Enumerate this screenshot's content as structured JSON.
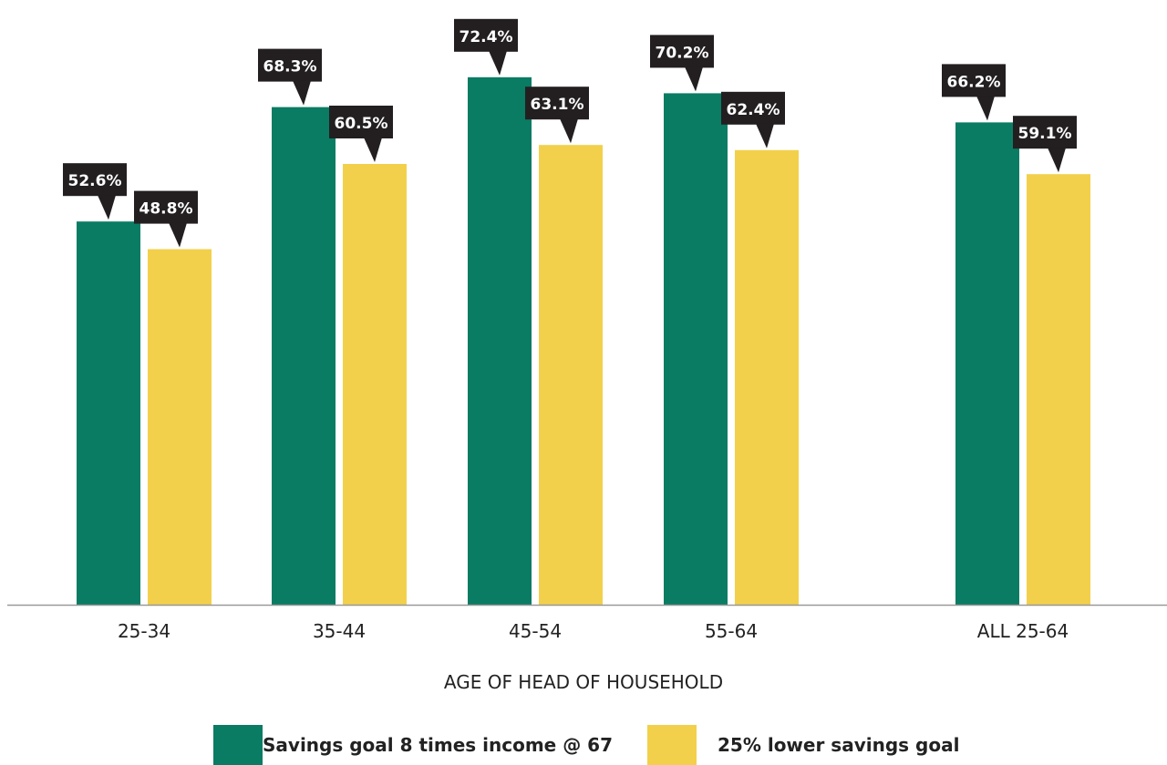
{
  "chart_data": {
    "type": "bar",
    "title": "",
    "xlabel": "AGE OF HEAD OF HOUSEHOLD",
    "ylabel": "",
    "ylim": [
      0,
      80
    ],
    "grid": false,
    "legend_position": "bottom",
    "categories": [
      "25-34",
      "35-44",
      "45-54",
      "55-64",
      "ALL 25-64"
    ],
    "series": [
      {
        "name": "Savings goal 8 times income @ 67",
        "color": "#0a7c63",
        "values": [
          52.6,
          68.3,
          72.4,
          70.2,
          66.2
        ],
        "labels": [
          "52.6%",
          "68.3%",
          "72.4%",
          "70.2%",
          "66.2%"
        ]
      },
      {
        "name": "25% lower savings goal",
        "color": "#f2d04b",
        "values": [
          48.8,
          60.5,
          63.1,
          62.4,
          59.1
        ],
        "labels": [
          "48.8%",
          "60.5%",
          "63.1%",
          "62.4%",
          "59.1%"
        ]
      }
    ],
    "callout_color": "#231f20",
    "axis_color": "#999999"
  }
}
